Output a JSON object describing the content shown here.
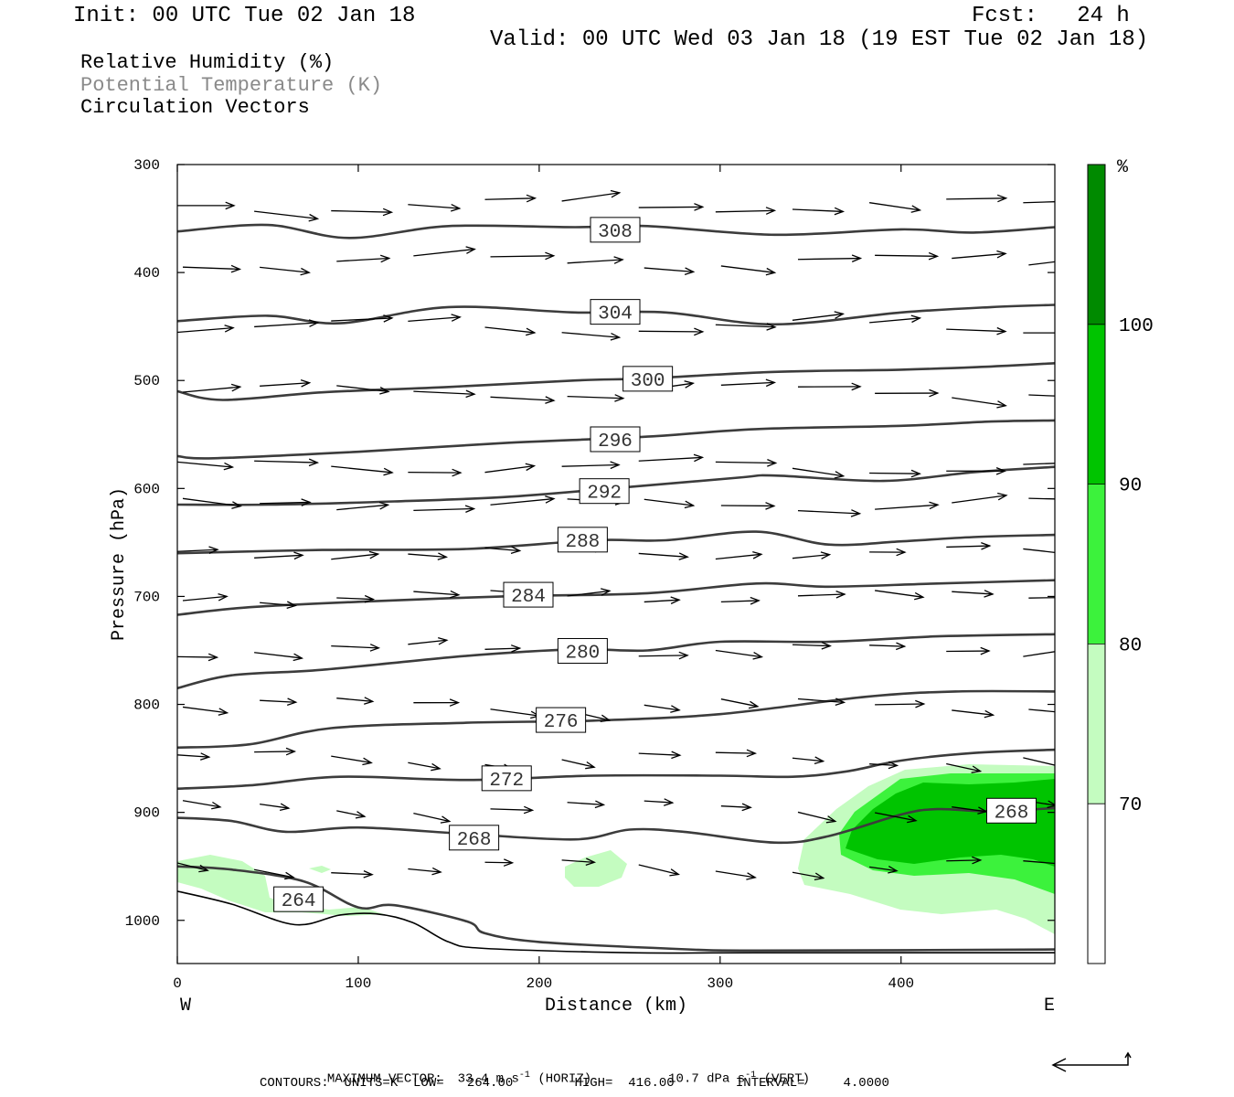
{
  "header": {
    "init": "Init: 00 UTC Tue 02 Jan 18",
    "fcst": "Fcst:   24 h",
    "valid": "Valid: 00 UTC Wed 03 Jan 18 (19 EST Tue 02 Jan 18)"
  },
  "fields": [
    {
      "label": "Relative Humidity (%)"
    },
    {
      "label": "Potential Temperature (K)"
    },
    {
      "label": "Circulation Vectors"
    }
  ],
  "colors": {
    "rh_70": "#c4fcc0",
    "rh_80": "#3cf23c",
    "rh_90": "#00c400",
    "rh_100": "#008a00",
    "theta_contour": "#3c3c3c",
    "vector": "#000000"
  },
  "chart_data": {
    "type": "cross-section",
    "xlabel": "Distance (km)",
    "ylabel": "Pressure (hPa)",
    "x_ticks": [
      0,
      100,
      200,
      300,
      400
    ],
    "y_ticks": [
      300,
      400,
      500,
      600,
      700,
      800,
      900,
      1000
    ],
    "xlim": [
      0,
      485
    ],
    "ylim": [
      300,
      1040
    ],
    "y_inverted": true,
    "endpoints": {
      "left": "W",
      "right": "E"
    },
    "colorbar": {
      "unit": "%",
      "levels": [
        70,
        80,
        90,
        100
      ],
      "tick_labels": [
        "70",
        "80",
        "90",
        "100"
      ],
      "colors": [
        "#ffffff",
        "#c4fcc0",
        "#3cf23c",
        "#00c400",
        "#008a00"
      ]
    },
    "theta_contours": [
      {
        "level": 308,
        "label": "308",
        "label_at": [
          242,
          360
        ],
        "points": [
          [
            0,
            362
          ],
          [
            50,
            356
          ],
          [
            95,
            368
          ],
          [
            150,
            357
          ],
          [
            220,
            358
          ],
          [
            260,
            357
          ],
          [
            330,
            365
          ],
          [
            400,
            360
          ],
          [
            440,
            363
          ],
          [
            485,
            358
          ]
        ]
      },
      {
        "level": 304,
        "label": "304",
        "label_at": [
          242,
          436
        ],
        "points": [
          [
            0,
            445
          ],
          [
            50,
            440
          ],
          [
            90,
            447
          ],
          [
            150,
            432
          ],
          [
            220,
            437
          ],
          [
            270,
            437
          ],
          [
            330,
            448
          ],
          [
            400,
            437
          ],
          [
            450,
            432
          ],
          [
            485,
            430
          ]
        ]
      },
      {
        "level": 300,
        "label": "300",
        "label_at": [
          260,
          498
        ],
        "points": [
          [
            0,
            510
          ],
          [
            25,
            518
          ],
          [
            80,
            511
          ],
          [
            150,
            506
          ],
          [
            220,
            500
          ],
          [
            260,
            498
          ],
          [
            330,
            492
          ],
          [
            400,
            490
          ],
          [
            450,
            487
          ],
          [
            485,
            484
          ]
        ]
      },
      {
        "level": 296,
        "label": "296",
        "label_at": [
          242,
          554
        ],
        "points": [
          [
            0,
            570
          ],
          [
            20,
            572
          ],
          [
            100,
            566
          ],
          [
            180,
            558
          ],
          [
            260,
            552
          ],
          [
            320,
            545
          ],
          [
            400,
            542
          ],
          [
            450,
            538
          ],
          [
            485,
            537
          ]
        ]
      },
      {
        "level": 292,
        "label": "292",
        "label_at": [
          236,
          602
        ],
        "points": [
          [
            0,
            615
          ],
          [
            50,
            615
          ],
          [
            120,
            612
          ],
          [
            180,
            608
          ],
          [
            240,
            600
          ],
          [
            310,
            590
          ],
          [
            330,
            588
          ],
          [
            390,
            593
          ],
          [
            440,
            585
          ],
          [
            485,
            580
          ]
        ]
      },
      {
        "level": 288,
        "label": "288",
        "label_at": [
          224,
          647
        ],
        "points": [
          [
            0,
            660
          ],
          [
            80,
            657
          ],
          [
            160,
            656
          ],
          [
            230,
            648
          ],
          [
            270,
            648
          ],
          [
            320,
            640
          ],
          [
            360,
            652
          ],
          [
            400,
            649
          ],
          [
            440,
            645
          ],
          [
            485,
            643
          ]
        ]
      },
      {
        "level": 284,
        "label": "284",
        "label_at": [
          194,
          698
        ],
        "points": [
          [
            0,
            717
          ],
          [
            40,
            710
          ],
          [
            100,
            705
          ],
          [
            180,
            700
          ],
          [
            260,
            697
          ],
          [
            320,
            688
          ],
          [
            360,
            691
          ],
          [
            420,
            688
          ],
          [
            485,
            685
          ]
        ]
      },
      {
        "level": 280,
        "label": "280",
        "label_at": [
          224,
          750
        ],
        "points": [
          [
            0,
            785
          ],
          [
            30,
            773
          ],
          [
            80,
            768
          ],
          [
            160,
            755
          ],
          [
            220,
            749
          ],
          [
            260,
            750
          ],
          [
            300,
            742
          ],
          [
            360,
            742
          ],
          [
            420,
            737
          ],
          [
            485,
            735
          ]
        ]
      },
      {
        "level": 276,
        "label": "276",
        "label_at": [
          212,
          814
        ],
        "points": [
          [
            0,
            840
          ],
          [
            40,
            837
          ],
          [
            85,
            822
          ],
          [
            160,
            817
          ],
          [
            230,
            815
          ],
          [
            300,
            809
          ],
          [
            380,
            793
          ],
          [
            430,
            788
          ],
          [
            485,
            788
          ]
        ]
      },
      {
        "level": 272,
        "label": "272",
        "label_at": [
          182,
          868
        ],
        "points": [
          [
            0,
            878
          ],
          [
            40,
            875
          ],
          [
            90,
            867
          ],
          [
            160,
            870
          ],
          [
            230,
            866
          ],
          [
            300,
            866
          ],
          [
            340,
            867
          ],
          [
            370,
            862
          ],
          [
            400,
            852
          ],
          [
            440,
            845
          ],
          [
            485,
            842
          ]
        ]
      },
      {
        "level": 268,
        "label": "268",
        "label_at": [
          164,
          923
        ],
        "points": [
          [
            0,
            905
          ],
          [
            30,
            908
          ],
          [
            60,
            918
          ],
          [
            100,
            914
          ],
          [
            160,
            920
          ],
          [
            220,
            925
          ],
          [
            250,
            916
          ],
          [
            280,
            918
          ],
          [
            330,
            928
          ],
          [
            360,
            922
          ],
          [
            400,
            902
          ],
          [
            420,
            897
          ],
          [
            450,
            899
          ],
          [
            485,
            896
          ]
        ]
      },
      {
        "level": 268,
        "label": "268",
        "label_at": [
          461,
          898
        ],
        "points": []
      },
      {
        "level": 264,
        "label": "264",
        "label_at": [
          67,
          980
        ],
        "points": [
          [
            0,
            950
          ],
          [
            30,
            953
          ],
          [
            70,
            964
          ],
          [
            100,
            988
          ],
          [
            120,
            986
          ],
          [
            160,
            1001
          ],
          [
            170,
            1012
          ],
          [
            200,
            1020
          ],
          [
            270,
            1026
          ],
          [
            320,
            1028
          ],
          [
            485,
            1027
          ]
        ]
      }
    ],
    "surface_contour": [
      [
        0,
        973
      ],
      [
        30,
        985
      ],
      [
        65,
        1004
      ],
      [
        90,
        995
      ],
      [
        110,
        994
      ],
      [
        130,
        1002
      ],
      [
        150,
        1020
      ],
      [
        170,
        1026
      ],
      [
        250,
        1030
      ],
      [
        320,
        1030
      ],
      [
        485,
        1030
      ]
    ],
    "vectors": {
      "rows_hpa": [
        338,
        390,
        450,
        510,
        580,
        615,
        660,
        700,
        750,
        800,
        850,
        895,
        950
      ],
      "max_horiz": "33.4",
      "max_vert": "10.7"
    },
    "footer": {
      "max_vector_label": "MAXIMUM VECTOR:",
      "horiz_value": "33.4",
      "horiz_unit": "m s",
      "horiz_exp": "-1",
      "horiz_tag": "(HORIZ)",
      "vert_value": "10.7",
      "vert_unit": "dPa s",
      "vert_exp": "-1",
      "vert_tag": "(VERT)",
      "contours_line": "CONTOURS:  UNITS=K  LOW=   264.00        HIGH=  416.00        INTERVAL=     4.0000"
    }
  }
}
